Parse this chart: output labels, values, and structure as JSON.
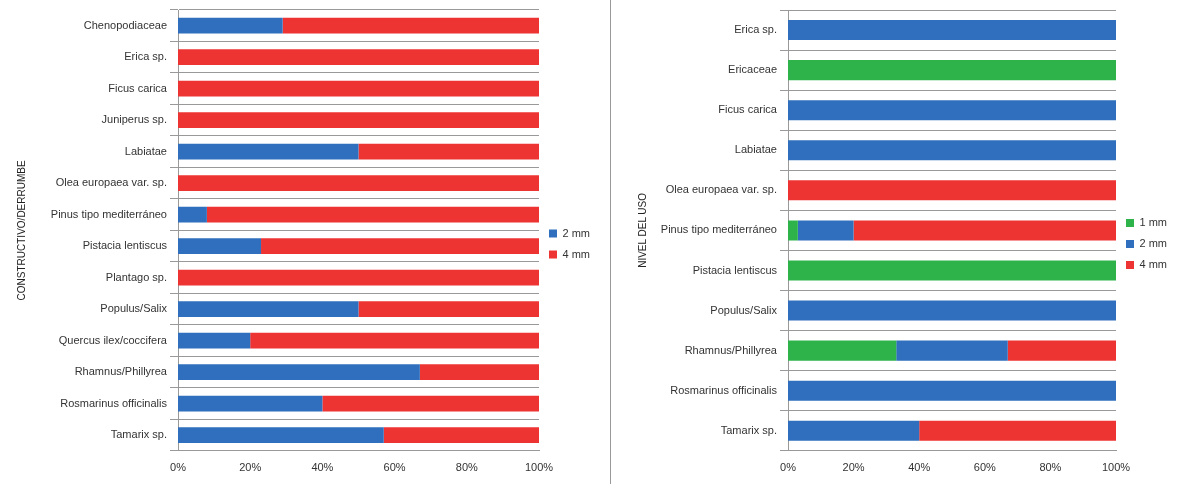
{
  "chart_data": [
    {
      "type": "bar",
      "orientation": "horizontal",
      "stacked": true,
      "ylabel": "CONSTRUCTIVO/DERRUMBE",
      "categories": [
        "Chenopodiaceae",
        "Erica sp.",
        "Ficus carica",
        "Juniperus sp.",
        "Labiatae",
        "Olea europaea var. sp.",
        "Pinus tipo mediterráneo",
        "Pistacia lentiscus",
        "Plantago sp.",
        "Populus/Salix",
        "Quercus ilex/coccifera",
        "Rhamnus/Phillyrea",
        "Rosmarinus officinalis",
        "Tamarix sp."
      ],
      "series": [
        {
          "name": "2 mm",
          "color": "#2f6fbd",
          "values": [
            29,
            0,
            0,
            0,
            50,
            0,
            8,
            23,
            0,
            50,
            20,
            67,
            40,
            57
          ]
        },
        {
          "name": "4 mm",
          "color": "#ee3333",
          "values": [
            71,
            100,
            100,
            100,
            50,
            100,
            92,
            77,
            100,
            50,
            80,
            33,
            60,
            43
          ]
        }
      ],
      "xlim": [
        0,
        100
      ],
      "xticks": [
        {
          "value": 0,
          "label": "0%"
        },
        {
          "value": 20,
          "label": "20%"
        },
        {
          "value": 40,
          "label": "40%"
        },
        {
          "value": 60,
          "label": "60%"
        },
        {
          "value": 80,
          "label": "80%"
        },
        {
          "value": 100,
          "label": "100%"
        }
      ],
      "grid": "y",
      "legend": "right"
    },
    {
      "type": "bar",
      "orientation": "horizontal",
      "stacked": true,
      "ylabel": "NIVEL DEL USO",
      "categories": [
        "Erica sp.",
        "Ericaceae",
        "Ficus carica",
        "Labiatae",
        "Olea europaea var. sp.",
        "Pinus tipo mediterráneo",
        "Pistacia lentiscus",
        "Populus/Salix",
        "Rhamnus/Phillyrea",
        "Rosmarinus officinalis",
        "Tamarix sp."
      ],
      "series": [
        {
          "name": "1 mm",
          "color": "#2db34a",
          "values": [
            0,
            100,
            0,
            0,
            0,
            3,
            100,
            0,
            33,
            0,
            0
          ]
        },
        {
          "name": "2 mm",
          "color": "#2f6fbd",
          "values": [
            100,
            0,
            100,
            100,
            0,
            17,
            0,
            100,
            34,
            100,
            40
          ]
        },
        {
          "name": "4 mm",
          "color": "#ee3333",
          "values": [
            0,
            0,
            0,
            0,
            100,
            80,
            0,
            0,
            33,
            0,
            60
          ]
        }
      ],
      "xlim": [
        0,
        100
      ],
      "xticks": [
        {
          "value": 0,
          "label": "0%"
        },
        {
          "value": 20,
          "label": "20%"
        },
        {
          "value": 40,
          "label": "40%"
        },
        {
          "value": 60,
          "label": "60%"
        },
        {
          "value": 80,
          "label": "80%"
        },
        {
          "value": 100,
          "label": "100%"
        }
      ],
      "grid": "y",
      "legend": "right"
    }
  ]
}
